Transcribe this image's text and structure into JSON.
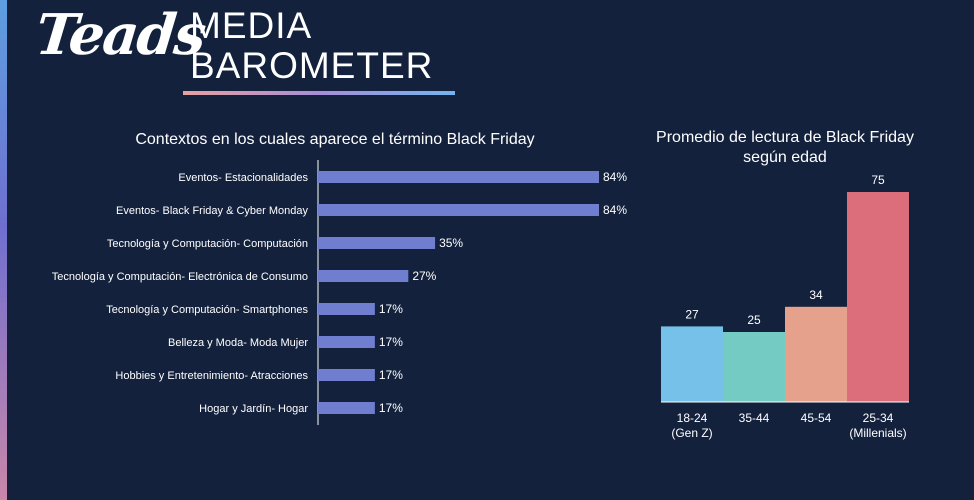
{
  "brand": {
    "logo": "Teads",
    "title_line1": "MEDIA",
    "title_line2": "BAROMETER"
  },
  "chart_data": [
    {
      "type": "bar",
      "orientation": "horizontal",
      "title": "Contextos en los cuales aparece el término Black Friday",
      "categories": [
        "Eventos- Estacionalidades",
        "Eventos- Black Friday & Cyber Monday",
        "Tecnología y Computación- Computación",
        "Tecnología y Computación- Electrónica de Consumo",
        "Tecnología y Computación- Smartphones",
        "Belleza y Moda- Moda Mujer",
        "Hobbies y Entretenimiento- Atracciones",
        "Hogar y Jardín- Hogar"
      ],
      "values": [
        84,
        84,
        35,
        27,
        17,
        17,
        17,
        17
      ],
      "value_labels": [
        "84%",
        "84%",
        "35%",
        "27%",
        "17%",
        "17%",
        "17%",
        "17%"
      ],
      "bar_color": "#6f7ecf",
      "xlim": [
        0,
        100
      ],
      "grid": false
    },
    {
      "type": "bar",
      "orientation": "vertical",
      "title": "Promedio de lectura de Black Friday según edad",
      "categories": [
        [
          "18-24",
          "(Gen Z)"
        ],
        [
          "35-44"
        ],
        [
          "45-54"
        ],
        [
          "25-34",
          "(Millenials)"
        ]
      ],
      "values": [
        27,
        25,
        34,
        75
      ],
      "colors": [
        "#76c1ea",
        "#73cbc4",
        "#e6a18c",
        "#dc6e7c"
      ],
      "ylim": [
        0,
        75
      ],
      "grid": false
    }
  ]
}
